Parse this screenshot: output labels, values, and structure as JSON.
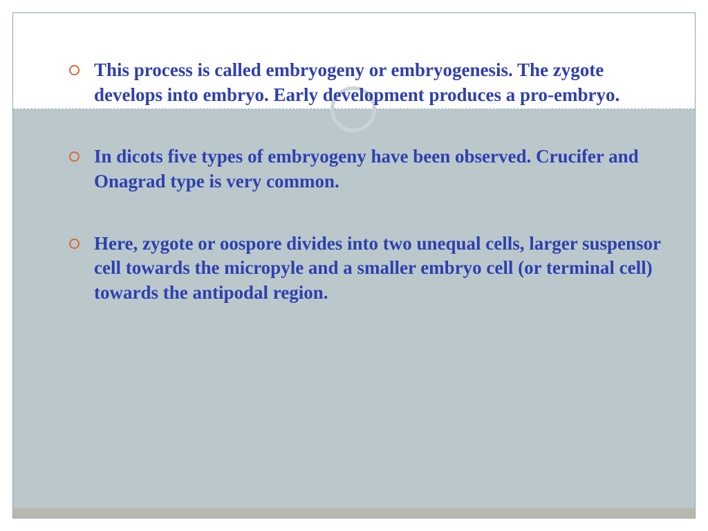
{
  "slide": {
    "text_color": "#2f3fb0",
    "bullet_color": "#d9653a",
    "bg_lower_color": "#bac8cc",
    "frame_border_color": "#8fa8a8",
    "circle_border_color": "#c9d4d7",
    "bottom_bar_color": "#b8a99a",
    "font_size_pt": 20,
    "font_family": "Times New Roman",
    "bullets": [
      "This process is called embryogeny or embryogenesis. The zygote develops into embryo. Early development produces a pro-embryo.",
      "In dicots five types of embryogeny have been observed. Crucifer and Onagrad type is very common.",
      "Here, zygote or oospore divides into two unequal cells, larger suspensor cell towards the micropyle and a smaller embryo cell (or terminal cell) towards the antipodal region."
    ]
  }
}
